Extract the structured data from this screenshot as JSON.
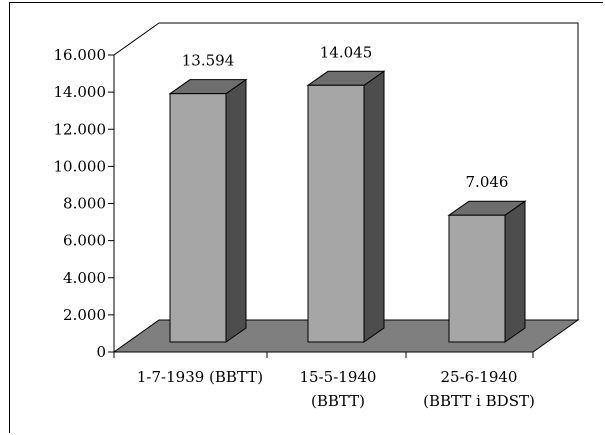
{
  "chart_data": {
    "type": "bar",
    "categories": [
      [
        "1-7-1939 (BBTT)"
      ],
      [
        "15-5-1940",
        "(BBTT)"
      ],
      [
        "25-6-1940",
        "(BBTT i BDST)"
      ]
    ],
    "values": [
      13594,
      14045,
      7046
    ],
    "value_labels": [
      "13.594",
      "14.045",
      "7.046"
    ],
    "yticks": [
      0,
      2000,
      4000,
      6000,
      8000,
      10000,
      12000,
      14000,
      16000
    ],
    "ytick_labels": [
      "0",
      "2.000",
      "4.000",
      "6.000",
      "8.000",
      "10.000",
      "12.000",
      "14.000",
      "16.000"
    ],
    "ylim": [
      0,
      16000
    ],
    "title": "",
    "xlabel": "",
    "ylabel": "",
    "grid": false,
    "legend": "none",
    "three_d": true,
    "colors": {
      "bar_front": "#a6a6a6",
      "bar_side": "#4d4d4d",
      "bar_top": "#6e6e6e",
      "floor": "#7f7f7f"
    }
  }
}
